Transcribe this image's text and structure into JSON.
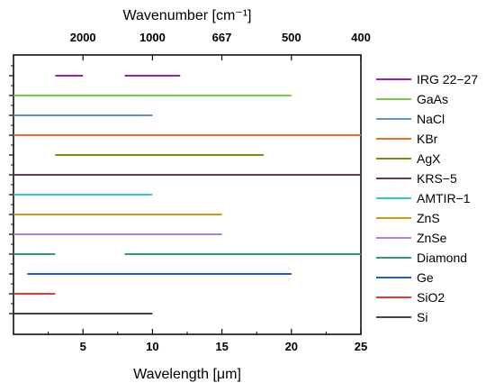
{
  "chart_data": {
    "type": "range-bar",
    "x_label": "Wavelength [μm]",
    "x_top_label": "Wavenumber [cm⁻¹]",
    "x_range": [
      0,
      25
    ],
    "x_ticks": [
      5,
      10,
      15,
      20,
      25
    ],
    "x_top_ticks": [
      2000,
      1000,
      667,
      500,
      400
    ],
    "legend_position": "right",
    "series": [
      {
        "name": "IRG 22−27",
        "color": "#9a1fb4",
        "segments": [
          [
            3,
            5
          ],
          [
            8,
            12
          ]
        ]
      },
      {
        "name": "GaAs",
        "color": "#7ac943",
        "segments": [
          [
            0,
            20
          ]
        ]
      },
      {
        "name": "NaCl",
        "color": "#5e94c8",
        "segments": [
          [
            0,
            10
          ]
        ]
      },
      {
        "name": "KBr",
        "color": "#f26b2a",
        "segments": [
          [
            0,
            25
          ]
        ]
      },
      {
        "name": "AgX",
        "color": "#7f8b16",
        "segments": [
          [
            3,
            18
          ]
        ]
      },
      {
        "name": "KRS−5",
        "color": "#6b3a48",
        "segments": [
          [
            0,
            25
          ]
        ]
      },
      {
        "name": "AMTIR−1",
        "color": "#2ec8c8",
        "segments": [
          [
            0,
            10
          ]
        ]
      },
      {
        "name": "ZnS",
        "color": "#cc9a1a",
        "segments": [
          [
            0,
            15
          ]
        ]
      },
      {
        "name": "ZnSe",
        "color": "#b07ed8",
        "segments": [
          [
            0,
            15
          ]
        ]
      },
      {
        "name": "Diamond",
        "color": "#2e9e6a",
        "segments": [
          [
            0,
            3
          ],
          [
            8,
            25
          ]
        ]
      },
      {
        "name": "Ge",
        "color": "#1f5fbf",
        "segments": [
          [
            1,
            20
          ]
        ]
      },
      {
        "name": "SiO2",
        "color": "#e83a3a",
        "segments": [
          [
            0,
            3
          ]
        ]
      },
      {
        "name": "Si",
        "color": "#444444",
        "segments": [
          [
            0,
            10
          ]
        ]
      }
    ]
  }
}
